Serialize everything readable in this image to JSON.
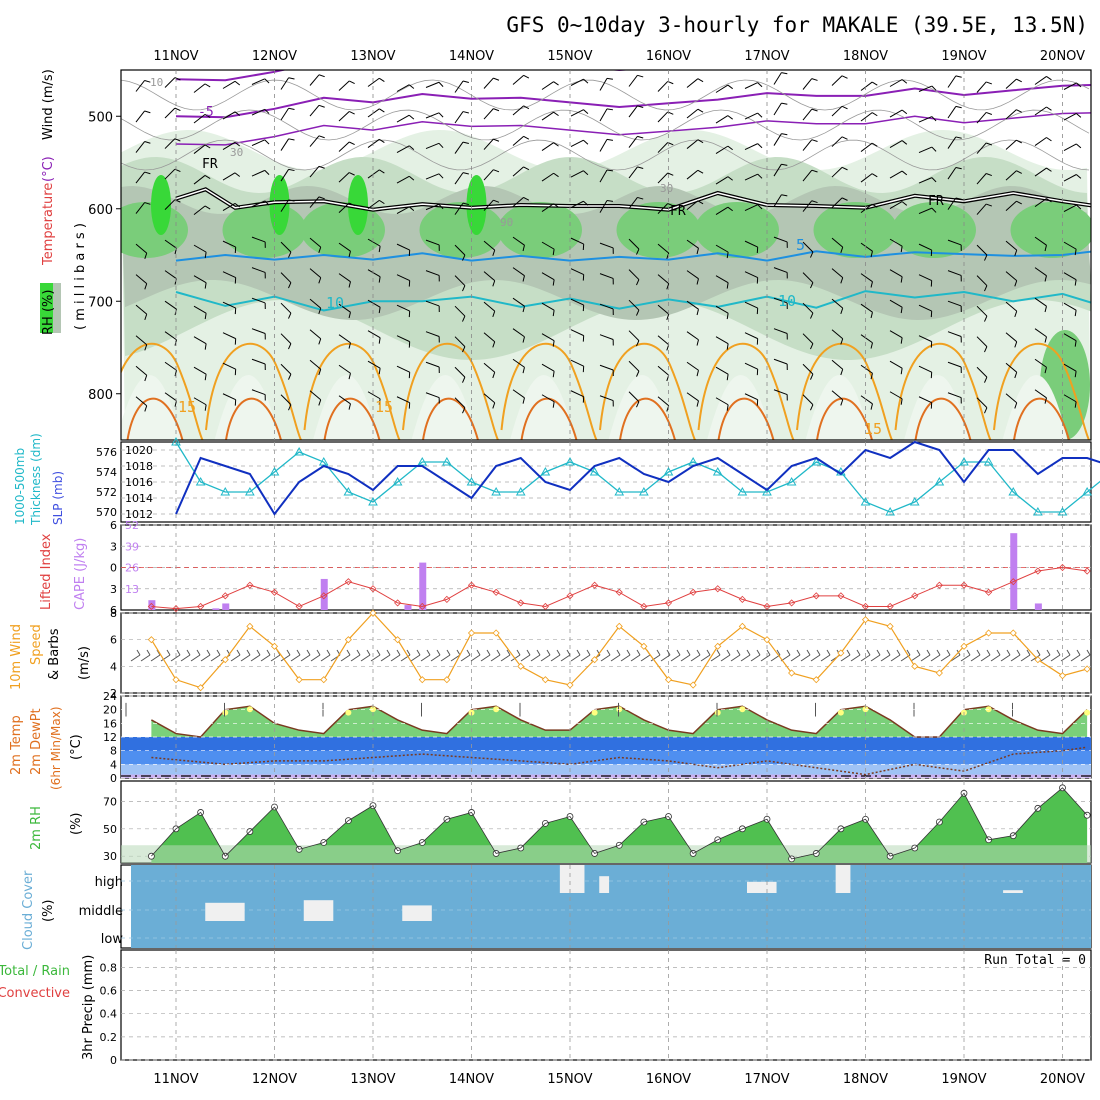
{
  "title": "GFS 0~10day 3-hourly for MAKALE (39.5E, 13.5N)",
  "dates": [
    "11NOV",
    "12NOV",
    "13NOV",
    "14NOV",
    "15NOV",
    "16NOV",
    "17NOV",
    "18NOV",
    "19NOV",
    "20NOV"
  ],
  "colors": {
    "purple": "#8a1fb5",
    "black": "#000000",
    "blue": "#1e90e0",
    "cyan": "#20b8c8",
    "orange": "#f0a020",
    "dark_orange": "#e07020",
    "rh_light": "#e4f1e4",
    "rh_mid": "#c6dec6",
    "rh_gray": "#b4c6b4",
    "rh_green": "#7acd7a",
    "rh_bright": "#38d838",
    "slp": "#1030c0",
    "thick": "#20b8c8",
    "li": "#e04040",
    "cape": "#c080f0",
    "wind": "#f0a020",
    "temp_fill": "#7ad07a",
    "temp_top": "#ffff80",
    "dew_blue": "#3070e0",
    "cloud": "#6baed6",
    "rh2m": "#50c050",
    "rh2m_bright": "#10e010"
  },
  "panels": {
    "upper": {
      "labels": {
        "rh": "RH (%)",
        "temperature": "Temperature",
        "celsius": "(°C)",
        "wind": "Wind (m/s)",
        "millibars": "( m i l l i b a r s )"
      },
      "contour_labels": {
        "minus5": "-5",
        "fr1": "FR",
        "fr2": "FR",
        "fr3": "FR",
        "fr4": "FR",
        "c30a": "30",
        "c30b": "30",
        "c90": "90",
        "c10r": "10",
        "p5": "5",
        "p10": "10",
        "p15a": "15",
        "p15b": "15",
        "p15c": "15"
      }
    },
    "slp": {
      "label_thick": "1000-500mb",
      "label_thick2": "Thickness (dm)",
      "label_slp": "SLP (mb)"
    },
    "li": {
      "label_li": "Lifted Index",
      "label_cape": "CAPE (J/kg)"
    },
    "wind10m": {
      "label1": "10m Wind",
      "label2": "Speed",
      "label3": "& Barbs",
      "label4": "(m/s)"
    },
    "temp2m": {
      "label1": "2m Temp",
      "label2": "2m DewPt",
      "label3": "(6hr Min/Max)",
      "label4": "(°C)"
    },
    "rh2m": {
      "label1": "2m RH",
      "label2": "(%)"
    },
    "cloud": {
      "label1": "Cloud Cover",
      "label2": "(%)",
      "levels": [
        "high",
        "middle",
        "low"
      ]
    },
    "precip": {
      "label1": "Total / Rain",
      "label2": "Convective",
      "label3": "3hr Precip (mm)",
      "run_total": "Run Total = 0"
    }
  },
  "chart_data": [
    {
      "type": "line",
      "title": "Upper-air cross section",
      "panel": "upper",
      "ylabel": "millibars",
      "yticks": [
        500,
        600,
        700,
        800
      ],
      "ylim": [
        450,
        850
      ],
      "isotherms": {
        "minus5": [
          [
            0,
            500
          ],
          [
            0.5,
            501
          ],
          [
            1,
            492
          ],
          [
            1.5,
            480
          ],
          [
            2,
            485
          ],
          [
            2.5,
            476
          ],
          [
            3,
            481
          ],
          [
            3.5,
            480
          ],
          [
            4,
            485
          ],
          [
            4.5,
            490
          ],
          [
            5,
            486
          ],
          [
            5.5,
            482
          ],
          [
            6,
            475
          ],
          [
            6.5,
            478
          ],
          [
            7,
            478
          ],
          [
            7.5,
            470
          ],
          [
            8,
            477
          ],
          [
            8.5,
            472
          ],
          [
            9,
            467
          ],
          [
            9.4,
            466
          ]
        ],
        "freezing": [
          [
            0,
            589
          ],
          [
            0.3,
            579
          ],
          [
            0.6,
            599
          ],
          [
            1,
            593
          ],
          [
            1.5,
            592
          ],
          [
            2,
            601
          ],
          [
            2.5,
            595
          ],
          [
            3,
            599
          ],
          [
            3.5,
            596
          ],
          [
            4,
            597
          ],
          [
            4.5,
            597
          ],
          [
            5,
            601
          ],
          [
            5.5,
            583
          ],
          [
            6,
            596
          ],
          [
            6.5,
            597
          ],
          [
            7,
            599
          ],
          [
            7.5,
            586
          ],
          [
            8,
            592
          ],
          [
            8.5,
            583
          ],
          [
            9,
            592
          ],
          [
            9.4,
            598
          ]
        ],
        "plus5": [
          [
            0,
            656
          ],
          [
            0.5,
            650
          ],
          [
            1,
            655
          ],
          [
            1.5,
            650
          ],
          [
            2,
            655
          ],
          [
            2.5,
            648
          ],
          [
            3,
            656
          ],
          [
            3.5,
            651
          ],
          [
            4,
            656
          ],
          [
            4.5,
            652
          ],
          [
            5,
            655
          ],
          [
            5.5,
            648
          ],
          [
            6,
            656
          ],
          [
            6.5,
            646
          ],
          [
            7,
            652
          ],
          [
            7.5,
            647
          ],
          [
            8,
            649
          ],
          [
            8.5,
            651
          ],
          [
            9,
            650
          ],
          [
            9.4,
            645
          ]
        ],
        "plus10": [
          [
            0,
            690
          ],
          [
            0.5,
            705
          ],
          [
            1,
            695
          ],
          [
            1.5,
            710
          ],
          [
            2,
            700
          ],
          [
            2.5,
            700
          ],
          [
            3,
            695
          ],
          [
            3.5,
            706
          ],
          [
            4,
            697
          ],
          [
            4.5,
            708
          ],
          [
            5,
            698
          ],
          [
            5.5,
            706
          ],
          [
            6,
            695
          ],
          [
            6.5,
            707
          ],
          [
            7,
            689
          ],
          [
            7.5,
            696
          ],
          [
            8,
            690
          ],
          [
            8.5,
            700
          ],
          [
            9,
            692
          ],
          [
            9.4,
            705
          ]
        ]
      }
    },
    {
      "type": "line",
      "title": "SLP and thickness",
      "panel": "slp",
      "series": [
        {
          "name": "1000-500mb Thickness (dm)",
          "axis": "left",
          "ylim": [
            569,
            577
          ],
          "x": [
            0,
            0.25,
            0.5,
            0.75,
            1,
            1.25,
            1.5,
            1.75,
            2,
            2.25,
            2.5,
            2.75,
            3,
            3.25,
            3.5,
            3.75,
            4,
            4.25,
            4.5,
            4.75,
            5,
            5.25,
            5.5,
            5.75,
            6,
            6.25,
            6.5,
            6.75,
            7,
            7.25,
            7.5,
            7.75,
            8,
            8.25,
            8.5,
            8.75,
            9,
            9.25,
            9.5
          ],
          "values": [
            577,
            573,
            572,
            572,
            574,
            576,
            575,
            572,
            571,
            573,
            575,
            575,
            573,
            572,
            572,
            574,
            575,
            574,
            572,
            572,
            574,
            575,
            574,
            572,
            572,
            573,
            575,
            574,
            571,
            570,
            571,
            573,
            575,
            575,
            572,
            570,
            570,
            572,
            574
          ]
        },
        {
          "name": "SLP (mb)",
          "axis": "right",
          "ylim": [
            1011,
            1021
          ],
          "x": [
            0,
            0.25,
            0.5,
            0.75,
            1,
            1.25,
            1.5,
            1.75,
            2,
            2.25,
            2.5,
            2.75,
            3,
            3.25,
            3.5,
            3.75,
            4,
            4.25,
            4.5,
            4.75,
            5,
            5.25,
            5.5,
            5.75,
            6,
            6.25,
            6.5,
            6.75,
            7,
            7.25,
            7.5,
            7.75,
            8,
            8.25,
            8.5,
            8.75,
            9,
            9.25,
            9.5
          ],
          "values": [
            1012,
            1019,
            1018,
            1017,
            1012,
            1016,
            1018,
            1017,
            1015,
            1018,
            1018,
            1016,
            1014,
            1018,
            1019,
            1016,
            1015,
            1018,
            1019,
            1017,
            1016,
            1018,
            1019,
            1017,
            1015,
            1018,
            1019,
            1017,
            1020,
            1019,
            1021,
            1020,
            1016,
            1020,
            1020,
            1017,
            1019,
            1019,
            1018
          ]
        }
      ],
      "yticks_left": [
        570,
        572,
        574,
        576
      ],
      "yticks_right": [
        1012,
        1014,
        1016,
        1018,
        1020
      ]
    },
    {
      "type": "bar",
      "title": "Lifted Index and CAPE",
      "panel": "li",
      "cape_ylim": [
        0,
        52
      ],
      "cape_yticks": [
        13,
        26,
        39,
        52
      ],
      "li_ylim": [
        6,
        -6
      ],
      "li_yticks": [
        -6,
        -3,
        0,
        3,
        6
      ],
      "cape_bars": [
        {
          "x": -0.25,
          "value": 6
        },
        {
          "x": 0.4,
          "value": 1
        },
        {
          "x": 0.5,
          "value": 4
        },
        {
          "x": 1.5,
          "value": 19
        },
        {
          "x": 2.35,
          "value": 3
        },
        {
          "x": 2.5,
          "value": 29
        },
        {
          "x": 8.5,
          "value": 47
        },
        {
          "x": 8.75,
          "value": 4
        }
      ],
      "li_series": {
        "x": [
          -0.25,
          0,
          0.25,
          0.5,
          0.75,
          1,
          1.25,
          1.5,
          1.75,
          2,
          2.25,
          2.5,
          2.75,
          3,
          3.25,
          3.5,
          3.75,
          4,
          4.25,
          4.5,
          4.75,
          5,
          5.25,
          5.5,
          5.75,
          6,
          6.25,
          6.5,
          6.75,
          7,
          7.25,
          7.5,
          7.75,
          8,
          8.25,
          8.5,
          8.75,
          9,
          9.25
        ],
        "values": [
          5.5,
          5.8,
          5.5,
          4,
          2.5,
          3.5,
          5.5,
          4,
          2,
          3,
          5,
          5.5,
          4.5,
          2.5,
          3.5,
          5,
          5.5,
          4,
          2.5,
          3.5,
          5.5,
          5,
          3.5,
          3,
          4.5,
          5.5,
          5,
          4,
          4,
          5.5,
          5.5,
          4,
          2.5,
          2.5,
          3.5,
          2,
          0.5,
          0,
          0.5
        ]
      }
    },
    {
      "type": "line",
      "title": "10m Wind Speed",
      "panel": "wind10m",
      "ylim": [
        2,
        8
      ],
      "yticks": [
        2,
        4,
        6,
        8
      ],
      "x": [
        -0.25,
        0,
        0.25,
        0.5,
        0.75,
        1,
        1.25,
        1.5,
        1.75,
        2,
        2.25,
        2.5,
        2.75,
        3,
        3.25,
        3.5,
        3.75,
        4,
        4.25,
        4.5,
        4.75,
        5,
        5.25,
        5.5,
        5.75,
        6,
        6.25,
        6.5,
        6.75,
        7,
        7.25,
        7.5,
        7.75,
        8,
        8.25,
        8.5,
        8.75,
        9,
        9.25
      ],
      "values": [
        6,
        3,
        2.4,
        4.5,
        7,
        5.5,
        3,
        3,
        6,
        8,
        6,
        3,
        3,
        6.5,
        6.5,
        4,
        3,
        2.6,
        4.5,
        7,
        5.5,
        3,
        2.6,
        5.5,
        7,
        6,
        3.5,
        3,
        5,
        7.5,
        7,
        4,
        3.5,
        5.5,
        6.5,
        6.5,
        4.5,
        3.3,
        3.8
      ]
    },
    {
      "type": "area",
      "title": "2m Temp / DewPt",
      "panel": "temp2m",
      "ylim": [
        0,
        24
      ],
      "yticks": [
        0,
        4,
        8,
        12,
        16,
        20,
        24
      ],
      "temp_x": [
        -0.25,
        0,
        0.25,
        0.5,
        0.75,
        1,
        1.25,
        1.5,
        1.75,
        2,
        2.25,
        2.5,
        2.75,
        3,
        3.25,
        3.5,
        3.75,
        4,
        4.25,
        4.5,
        4.75,
        5,
        5.25,
        5.5,
        5.75,
        6,
        6.25,
        6.5,
        6.75,
        7,
        7.25,
        7.5,
        7.75,
        8,
        8.25,
        8.5,
        8.75,
        9,
        9.25
      ],
      "temp": [
        17,
        13,
        12,
        20,
        21,
        16,
        14,
        13,
        20,
        21,
        17,
        14,
        13,
        20,
        21,
        17,
        14,
        14,
        20,
        21,
        17,
        14,
        13,
        20,
        21,
        17,
        14,
        13,
        20,
        21,
        17,
        12,
        12,
        20,
        21,
        17,
        14,
        13,
        20
      ],
      "dewpoint_x": [
        -0.25,
        0.5,
        1,
        1.5,
        2,
        2.5,
        3,
        3.5,
        4,
        4.5,
        5,
        5.5,
        6,
        6.5,
        7,
        7.5,
        8,
        8.5,
        9,
        9.25
      ],
      "dewpoint": [
        6,
        4,
        5,
        5,
        6,
        7,
        6,
        5,
        4,
        6,
        5,
        3,
        5,
        3,
        1,
        4,
        2,
        7,
        8,
        9
      ]
    },
    {
      "type": "area",
      "title": "2m RH",
      "panel": "rh2m",
      "ylim": [
        25,
        85
      ],
      "yticks": [
        30,
        50,
        70
      ],
      "x": [
        -0.25,
        0,
        0.25,
        0.5,
        0.75,
        1,
        1.25,
        1.5,
        1.75,
        2,
        2.25,
        2.5,
        2.75,
        3,
        3.25,
        3.5,
        3.75,
        4,
        4.25,
        4.5,
        4.75,
        5,
        5.25,
        5.5,
        5.75,
        6,
        6.25,
        6.5,
        6.75,
        7,
        7.25,
        7.5,
        7.75,
        8,
        8.25,
        8.5,
        8.75,
        9,
        9.25
      ],
      "values": [
        30,
        50,
        62,
        30,
        48,
        66,
        35,
        40,
        56,
        67,
        34,
        40,
        57,
        62,
        32,
        36,
        54,
        59,
        32,
        38,
        55,
        59,
        32,
        42,
        50,
        57,
        28,
        32,
        50,
        57,
        30,
        36,
        55,
        76,
        42,
        45,
        65,
        80,
        60
      ]
    },
    {
      "type": "bar",
      "title": "Cloud Cover",
      "panel": "cloud",
      "high": [
        {
          "x": 4.1,
          "w": 0.25,
          "v": 1
        },
        {
          "x": 4.5,
          "w": 0.1,
          "v": 0.6
        },
        {
          "x": 6.0,
          "w": 0.3,
          "v": 0.4
        },
        {
          "x": 6.9,
          "w": 0.15,
          "v": 1
        },
        {
          "x": 8.6,
          "w": 0.2,
          "v": 0.1
        }
      ],
      "middle": [
        {
          "x": 0.5,
          "w": 0.4,
          "v": 0.7
        },
        {
          "x": 1.5,
          "w": 0.3,
          "v": 0.8
        },
        {
          "x": 2.5,
          "w": 0.3,
          "v": 0.6
        }
      ],
      "low": []
    },
    {
      "type": "bar",
      "title": "3hr Precip",
      "panel": "precip",
      "ylim": [
        0,
        1
      ],
      "yticks": [
        0,
        0.2,
        0.4,
        0.6,
        0.8
      ],
      "values": []
    }
  ]
}
